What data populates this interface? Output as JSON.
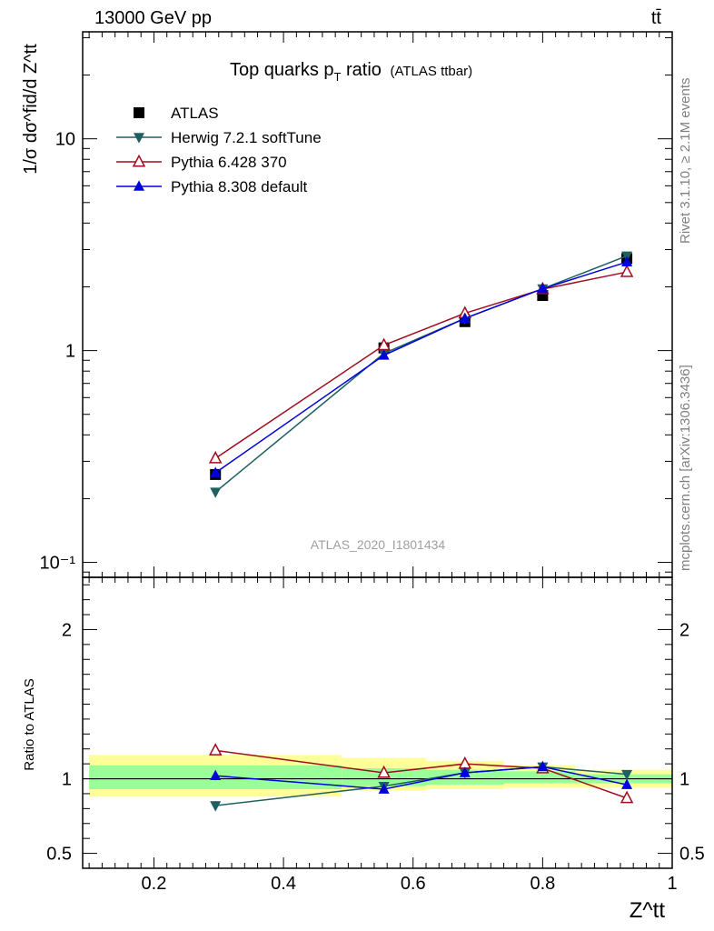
{
  "header": {
    "energy": "13000 GeV pp",
    "process": "tt̄"
  },
  "side_notes": {
    "rivet": "Rivet 3.1.10, ≥ 2.1M events",
    "mcplots": "mcplots.cern.ch [arXiv:1306.3436]"
  },
  "chart_data": [
    {
      "type": "scatter",
      "title_main": "Top quarks p",
      "title_sub": "T",
      "title_tail": " ratio",
      "title_paren": "(ATLAS ttbar)",
      "ylabel": "1/σ dσ^fid/d Z^tt",
      "yscale": "log",
      "ylim": [
        0.085,
        32
      ],
      "xlim": [
        0.09,
        1.0
      ],
      "ytick_labels": [
        "10⁻¹",
        "1",
        "10"
      ],
      "watermark": "ATLAS_2020_I1801434",
      "legend_position": "top-left",
      "series": [
        {
          "name": "ATLAS",
          "color": "#000000",
          "marker": "square",
          "x": [
            0.295,
            0.555,
            0.68,
            0.8,
            0.93
          ],
          "y": [
            0.26,
            1.03,
            1.37,
            1.82,
            2.72
          ]
        },
        {
          "name": "Herwig 7.2.1 softTune",
          "color": "#1e5f5f",
          "marker": "triangle-down",
          "x": [
            0.295,
            0.555,
            0.68,
            0.8,
            0.93
          ],
          "y": [
            0.215,
            0.97,
            1.42,
            1.96,
            2.8
          ]
        },
        {
          "name": "Pythia 6.428 370",
          "color": "#a00d1e",
          "marker": "triangle-up-open",
          "x": [
            0.295,
            0.555,
            0.68,
            0.8,
            0.93
          ],
          "y": [
            0.31,
            1.06,
            1.5,
            1.95,
            2.35
          ]
        },
        {
          "name": "Pythia 8.308 default",
          "color": "#0000dd",
          "marker": "triangle-up",
          "x": [
            0.295,
            0.555,
            0.68,
            0.8,
            0.93
          ],
          "y": [
            0.265,
            0.95,
            1.42,
            1.96,
            2.62
          ]
        }
      ]
    },
    {
      "type": "scatter",
      "ylabel": "Ratio to ATLAS",
      "xlabel": "Z^tt",
      "ylim": [
        0.4,
        2.35
      ],
      "xlim": [
        0.09,
        1.0
      ],
      "xticks": [
        0.2,
        0.4,
        0.6,
        0.8,
        1
      ],
      "xtick_labels": [
        "0.2",
        "0.4",
        "0.6",
        "0.8",
        "1"
      ],
      "yticks": [
        0.5,
        1,
        2
      ],
      "ytick_labels": [
        "0.5",
        "1",
        "2"
      ],
      "bands": [
        {
          "x_edges": [
            0.1,
            0.49,
            0.62,
            0.74,
            0.85,
            1.0
          ],
          "yellow_lo": [
            0.88,
            0.92,
            0.93,
            0.94,
            0.94
          ],
          "yellow_hi": [
            1.16,
            1.14,
            1.12,
            1.09,
            1.06
          ],
          "green_lo": [
            0.93,
            0.95,
            0.96,
            0.97,
            0.97
          ],
          "green_hi": [
            1.09,
            1.07,
            1.06,
            1.05,
            1.03
          ]
        }
      ],
      "series": [
        {
          "name": "Herwig 7.2.1 softTune",
          "color": "#1e5f5f",
          "marker": "triangle-down",
          "x": [
            0.295,
            0.555,
            0.68,
            0.8,
            0.93
          ],
          "y": [
            0.82,
            0.95,
            1.04,
            1.08,
            1.03
          ],
          "err": [
            0.03,
            0.02,
            0.02,
            0.02,
            0.01
          ]
        },
        {
          "name": "Pythia 6.428 370",
          "color": "#a00d1e",
          "marker": "triangle-up-open",
          "x": [
            0.295,
            0.555,
            0.68,
            0.8,
            0.93
          ],
          "y": [
            1.19,
            1.04,
            1.1,
            1.07,
            0.87
          ],
          "err": [
            0.03,
            0.02,
            0.02,
            0.02,
            0.01
          ]
        },
        {
          "name": "Pythia 8.308 default",
          "color": "#0000dd",
          "marker": "triangle-up",
          "x": [
            0.295,
            0.555,
            0.68,
            0.8,
            0.93
          ],
          "y": [
            1.02,
            0.93,
            1.04,
            1.08,
            0.96
          ],
          "err": [
            0.03,
            0.02,
            0.02,
            0.02,
            0.01
          ]
        }
      ]
    }
  ]
}
